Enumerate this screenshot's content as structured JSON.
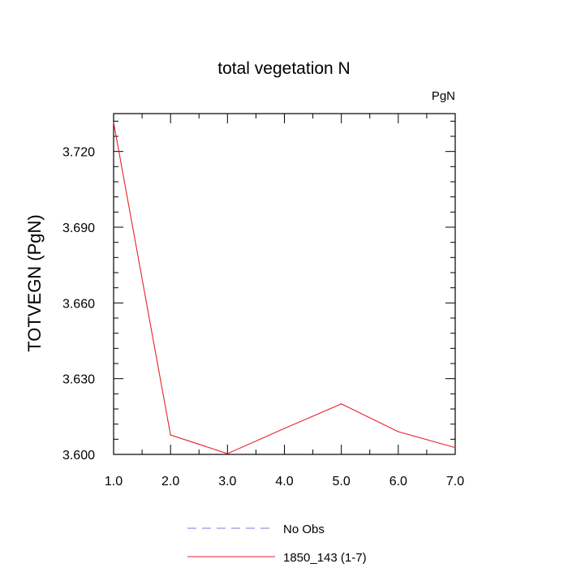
{
  "chart_data": {
    "type": "line",
    "title": "total vegetation N",
    "units_label": "PgN",
    "ylabel": "TOTVEGN  (PgN)",
    "xlabel": "",
    "xlim": [
      1.0,
      7.0
    ],
    "ylim": [
      3.6,
      3.735
    ],
    "x_ticks": [
      1.0,
      2.0,
      3.0,
      4.0,
      5.0,
      6.0,
      7.0
    ],
    "x_tick_labels": [
      "1.0",
      "2.0",
      "3.0",
      "4.0",
      "5.0",
      "6.0",
      "7.0"
    ],
    "y_ticks": [
      3.6,
      3.63,
      3.66,
      3.69,
      3.72
    ],
    "y_tick_labels": [
      "3.600",
      "3.630",
      "3.660",
      "3.690",
      "3.720"
    ],
    "grid": false,
    "legend_position": "bottom",
    "series": [
      {
        "name": "1850_143 (1-7)",
        "color": "#e8202a",
        "style": "solid",
        "x": [
          1,
          2,
          3,
          4,
          5,
          6,
          7
        ],
        "y": [
          3.7315,
          3.6077,
          3.6003,
          3.6103,
          3.62,
          3.609,
          3.6027
        ]
      }
    ],
    "legend": [
      {
        "label": "No Obs",
        "color": "#7b7bd9",
        "style": "dashed"
      },
      {
        "label": "1850_143 (1-7)",
        "color": "#e8202a",
        "style": "solid"
      }
    ]
  }
}
